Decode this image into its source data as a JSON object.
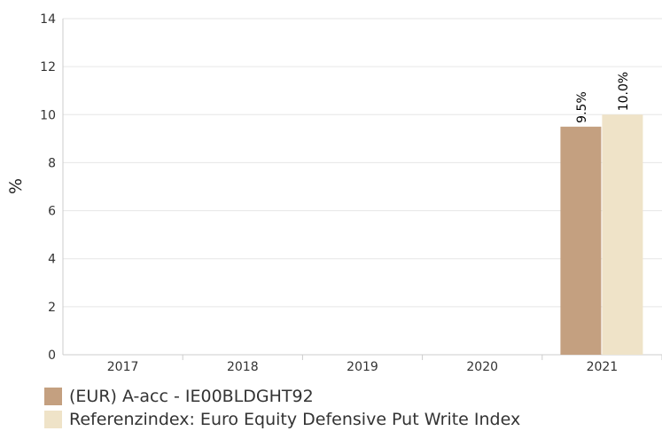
{
  "chart_data": {
    "type": "bar",
    "categories": [
      "2017",
      "2018",
      "2019",
      "2020",
      "2021"
    ],
    "series": [
      {
        "name": "(EUR) A-acc - IE00BLDGHT92",
        "color": "#c4a080",
        "values": [
          null,
          null,
          null,
          null,
          9.5
        ],
        "labels": [
          "",
          "",
          "",
          "",
          "9.5%"
        ]
      },
      {
        "name": "Referenzindex: Euro Equity Defensive Put Write Index",
        "color": "#efe3c8",
        "values": [
          null,
          null,
          null,
          null,
          10.0
        ],
        "labels": [
          "",
          "",
          "",
          "",
          "10.0%"
        ]
      }
    ],
    "ylabel": "%",
    "xlabel": "",
    "ylim": [
      0,
      14
    ],
    "yticks": [
      "0",
      "2",
      "4",
      "6",
      "8",
      "10",
      "12",
      "14"
    ],
    "grid": true,
    "legend_position": "bottom-left"
  }
}
